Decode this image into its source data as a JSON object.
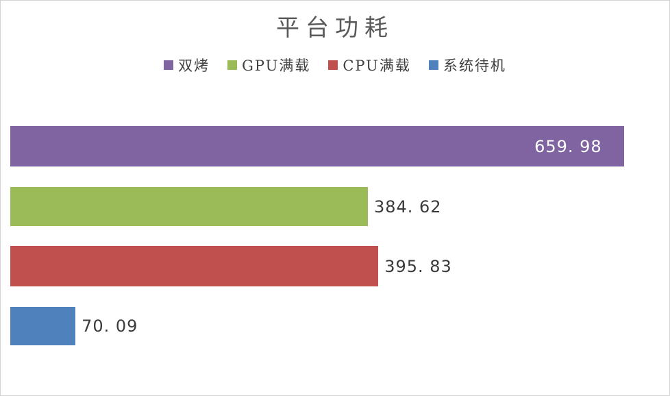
{
  "chart_data": {
    "type": "bar",
    "orientation": "horizontal",
    "title": "平台功耗",
    "categories": [
      "双烤",
      "GPU满载",
      "CPU满载",
      "系统待机"
    ],
    "values": [
      659.98,
      384.62,
      395.83,
      70.09
    ],
    "value_labels": [
      "659. 98",
      "384. 62",
      "395. 83",
      "70. 09"
    ],
    "colors": [
      "#8064A2",
      "#9BBB59",
      "#C0504D",
      "#4F81BD"
    ],
    "xlim": [
      0,
      700
    ],
    "xlabel": "",
    "ylabel": "",
    "grid": false,
    "axes_visible": false,
    "legend_position": "top",
    "value_label_placement": [
      "inside-end",
      "outside-end",
      "outside-end",
      "outside-end"
    ]
  },
  "colors": {
    "background": "#FFFFFF",
    "border": "#D3D3D3",
    "title_text": "#595959",
    "legend_text": "#404040",
    "value_label_inside": "#FFFFFF",
    "value_label_outside": "#3A3A3A"
  }
}
